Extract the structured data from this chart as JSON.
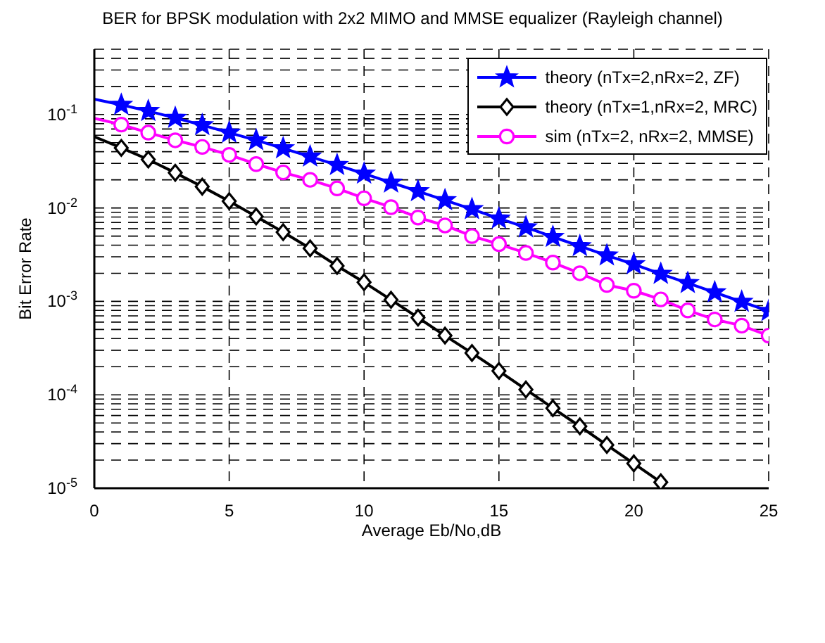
{
  "chart_data": {
    "type": "line",
    "title": "BER for BPSK modulation with 2x2 MIMO and MMSE equalizer (Rayleigh channel)",
    "xlabel": "Average Eb/No,dB",
    "ylabel": "Bit Error Rate",
    "x": [
      0,
      1,
      2,
      3,
      4,
      5,
      6,
      7,
      8,
      9,
      10,
      11,
      12,
      13,
      14,
      15,
      16,
      17,
      18,
      19,
      20,
      21,
      22,
      23,
      24,
      25
    ],
    "series": [
      {
        "name": "theory (nTx=2,nRx=2, ZF)",
        "color": "#0000ff",
        "marker": "star",
        "values": [
          0.146,
          0.127,
          0.109,
          0.092,
          0.077,
          0.064,
          0.053,
          0.0435,
          0.0355,
          0.0288,
          0.0233,
          0.0187,
          0.0151,
          0.0121,
          0.0097,
          0.0077,
          0.0062,
          0.0049,
          0.0039,
          0.0031,
          0.0025,
          0.00197,
          0.00157,
          0.00125,
          0.00099,
          0.00079
        ]
      },
      {
        "name": "theory (nTx=1,nRx=2, MRC)",
        "color": "#000000",
        "marker": "diamond",
        "values": [
          0.058,
          0.044,
          0.033,
          0.0238,
          0.0169,
          0.0118,
          0.0081,
          0.0055,
          0.0037,
          0.0024,
          0.0016,
          0.00104,
          0.00067,
          0.00043,
          0.00028,
          0.00018,
          0.000114,
          7.2e-05,
          4.6e-05,
          2.9e-05,
          1.84e-05,
          1.16e-05,
          null,
          null,
          null,
          null
        ]
      },
      {
        "name": "sim (nTx=2, nRx=2, MMSE)",
        "color": "#ff00ff",
        "marker": "circle",
        "values": [
          0.091,
          0.078,
          0.064,
          0.053,
          0.045,
          0.037,
          0.0295,
          0.024,
          0.02,
          0.0162,
          0.0127,
          0.0102,
          0.0079,
          0.0065,
          0.005,
          0.0041,
          0.0033,
          0.0026,
          0.002,
          0.0015,
          0.0013,
          0.00105,
          0.0008,
          0.00064,
          0.00055,
          0.00043
        ]
      }
    ],
    "log": "y",
    "xlim": [
      0,
      25
    ],
    "xticks": [
      0,
      5,
      10,
      15,
      20,
      25
    ],
    "ylim": [
      1e-05,
      0.5
    ],
    "yticks": [
      {
        "value": 1e-05,
        "label": "10$^{-5}$"
      },
      {
        "value": 2e-05,
        "label": null
      },
      {
        "value": 3e-05,
        "label": null
      },
      {
        "value": 4e-05,
        "label": null
      },
      {
        "value": 5e-05,
        "label": null
      },
      {
        "value": 6e-05,
        "label": null
      },
      {
        "value": 7e-05,
        "label": null
      },
      {
        "value": 8e-05,
        "label": null
      },
      {
        "value": 9e-05,
        "label": null
      },
      {
        "value": 0.0001,
        "label": "10$^{-4}$"
      },
      {
        "value": 0.0002,
        "label": null
      },
      {
        "value": 0.0003,
        "label": null
      },
      {
        "value": 0.0004,
        "label": null
      },
      {
        "value": 0.0005,
        "label": null
      },
      {
        "value": 0.0006,
        "label": null
      },
      {
        "value": 0.0007,
        "label": null
      },
      {
        "value": 0.0008,
        "label": null
      },
      {
        "value": 0.0009,
        "label": null
      },
      {
        "value": 0.001,
        "label": "10$^{-3}$"
      },
      {
        "value": 0.002,
        "label": null
      },
      {
        "value": 0.003,
        "label": null
      },
      {
        "value": 0.004,
        "label": null
      },
      {
        "value": 0.005,
        "label": null
      },
      {
        "value": 0.006,
        "label": null
      },
      {
        "value": 0.007,
        "label": null
      },
      {
        "value": 0.008,
        "label": null
      },
      {
        "value": 0.009,
        "label": null
      },
      {
        "value": 0.01,
        "label": "10$^{-2}$"
      },
      {
        "value": 0.02,
        "label": null
      },
      {
        "value": 0.03,
        "label": null
      },
      {
        "value": 0.04,
        "label": null
      },
      {
        "value": 0.05,
        "label": null
      },
      {
        "value": 0.06,
        "label": null
      },
      {
        "value": 0.07,
        "label": null
      },
      {
        "value": 0.08,
        "label": null
      },
      {
        "value": 0.09,
        "label": null
      },
      {
        "value": 0.1,
        "label": "10$^{-1}$"
      },
      {
        "value": 0.2,
        "label": null
      },
      {
        "value": 0.3,
        "label": null
      },
      {
        "value": 0.4,
        "label": null
      },
      {
        "value": 0.5,
        "label": null
      }
    ],
    "grid": true,
    "legend": "top right",
    "line_style": "solid"
  }
}
